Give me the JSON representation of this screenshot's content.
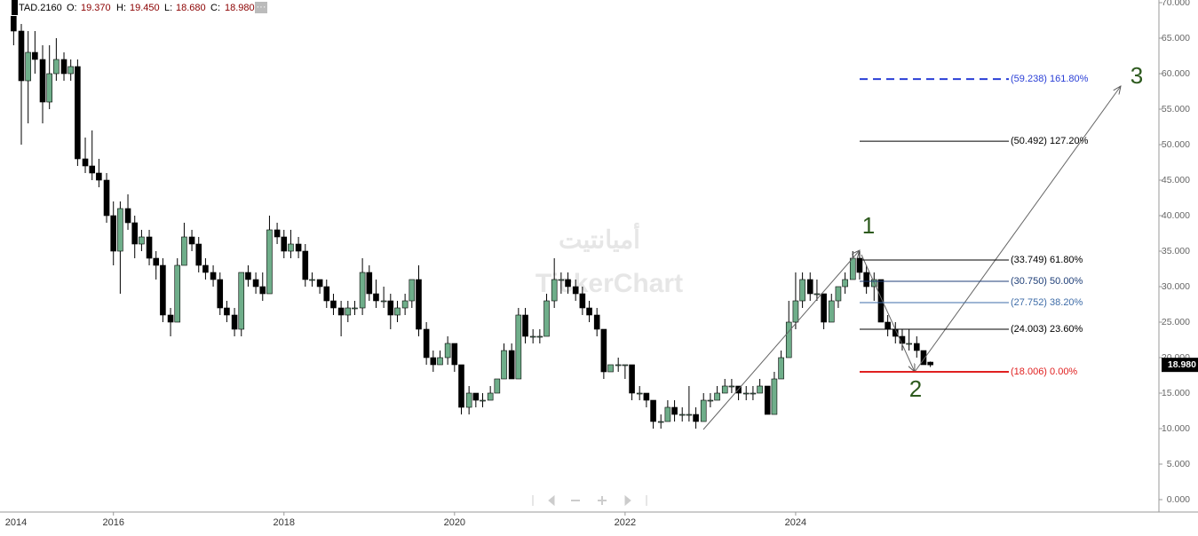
{
  "chart_data": {
    "type": "candlestick",
    "symbol": "TAD.2160",
    "ohlc_names": [
      "O:",
      "H:",
      "L:",
      "C:"
    ],
    "ohlc_labels": [
      "19.370",
      "19.450",
      "18.680",
      "18.980"
    ],
    "up_color": "#6fae8a",
    "down_color": "#000000",
    "x": [
      2014.83,
      2014.92,
      2015.0,
      2015.08,
      2015.17,
      2015.25,
      2015.33,
      2015.42,
      2015.5,
      2015.58,
      2015.67,
      2015.75,
      2015.83,
      2015.92,
      2016.0,
      2016.08,
      2016.17,
      2016.25,
      2016.33,
      2016.42,
      2016.5,
      2016.58,
      2016.67,
      2016.75,
      2016.83,
      2016.92,
      2017.0,
      2017.08,
      2017.17,
      2017.25,
      2017.33,
      2017.42,
      2017.5,
      2017.58,
      2017.67,
      2017.75,
      2017.83,
      2017.92,
      2018.0,
      2018.08,
      2018.17,
      2018.25,
      2018.33,
      2018.42,
      2018.5,
      2018.58,
      2018.67,
      2018.75,
      2018.83,
      2018.92,
      2019.0,
      2019.08,
      2019.17,
      2019.25,
      2019.33,
      2019.42,
      2019.5,
      2019.58,
      2019.67,
      2019.75,
      2019.83,
      2019.92,
      2020.0,
      2020.08,
      2020.17,
      2020.25,
      2020.33,
      2020.42,
      2020.5,
      2020.58,
      2020.67,
      2020.75,
      2020.83,
      2020.92,
      2021.0,
      2021.08,
      2021.17,
      2021.25,
      2021.33,
      2021.42,
      2021.5,
      2021.58,
      2021.67,
      2021.75,
      2021.83,
      2021.92,
      2022.0,
      2022.08,
      2022.17,
      2022.25,
      2022.33,
      2022.42,
      2022.5,
      2022.58,
      2022.67,
      2022.75,
      2022.83,
      2022.92,
      2023.0,
      2023.08,
      2023.17,
      2023.25,
      2023.33,
      2023.42,
      2023.5,
      2023.58,
      2023.67,
      2023.75,
      2023.83,
      2023.92,
      2024.0,
      2024.08,
      2024.17,
      2024.25,
      2024.33,
      2024.42,
      2024.5,
      2024.58,
      2024.67,
      2024.75,
      2024.83,
      2024.92,
      2025.0,
      2025.08,
      2025.17,
      2025.25,
      2025.33,
      2025.42,
      2025.5,
      2025.58
    ],
    "ohlc": [
      [
        70,
        71,
        64,
        66
      ],
      [
        66,
        67,
        50,
        59
      ],
      [
        59,
        66,
        53,
        63
      ],
      [
        63,
        66,
        60,
        62
      ],
      [
        62,
        64,
        53,
        56
      ],
      [
        56,
        64,
        55,
        60
      ],
      [
        60,
        65,
        59,
        62
      ],
      [
        62,
        63,
        59,
        60
      ],
      [
        60,
        62,
        59,
        61
      ],
      [
        61,
        62,
        47,
        48
      ],
      [
        48,
        51,
        46,
        47
      ],
      [
        47,
        52,
        45,
        46
      ],
      [
        46,
        48,
        44,
        45
      ],
      [
        45,
        46,
        39,
        40
      ],
      [
        40,
        42,
        33,
        35
      ],
      [
        35,
        42,
        29,
        41
      ],
      [
        41,
        43,
        38,
        39
      ],
      [
        39,
        40,
        34,
        36
      ],
      [
        36,
        38,
        35,
        37
      ],
      [
        37,
        38,
        33,
        34
      ],
      [
        34,
        35,
        31,
        33
      ],
      [
        33,
        34,
        25,
        26
      ],
      [
        26,
        27,
        23,
        25
      ],
      [
        25,
        34,
        25,
        33
      ],
      [
        33,
        39,
        33,
        37
      ],
      [
        37,
        38,
        35,
        36
      ],
      [
        36,
        37,
        32,
        33
      ],
      [
        33,
        34,
        31,
        32
      ],
      [
        32,
        33,
        30,
        31
      ],
      [
        31,
        32,
        26,
        27
      ],
      [
        27,
        28,
        25,
        26
      ],
      [
        26,
        27,
        23,
        24
      ],
      [
        24,
        32,
        23,
        32
      ],
      [
        32,
        33,
        30,
        31
      ],
      [
        31,
        32,
        29,
        30
      ],
      [
        30,
        32,
        28,
        29
      ],
      [
        29,
        40,
        29,
        38
      ],
      [
        38,
        39,
        36,
        37
      ],
      [
        37,
        38,
        34,
        35
      ],
      [
        35,
        38,
        34,
        36
      ],
      [
        36,
        37,
        34,
        35
      ],
      [
        35,
        36,
        30,
        31
      ],
      [
        31,
        32,
        30,
        31
      ],
      [
        31,
        31,
        29,
        30
      ],
      [
        30,
        31,
        27,
        28
      ],
      [
        28,
        29,
        26,
        27
      ],
      [
        27,
        28,
        23,
        26
      ],
      [
        26,
        28,
        25,
        27
      ],
      [
        27,
        28,
        26,
        27
      ],
      [
        27,
        34,
        26,
        32
      ],
      [
        32,
        33,
        28,
        29
      ],
      [
        29,
        31,
        27,
        28
      ],
      [
        28,
        30,
        27,
        28
      ],
      [
        28,
        29,
        24,
        26
      ],
      [
        26,
        28,
        25,
        27
      ],
      [
        27,
        29,
        26,
        28
      ],
      [
        28,
        31,
        27,
        31
      ],
      [
        31,
        33,
        23,
        24
      ],
      [
        24,
        25,
        19,
        20
      ],
      [
        20,
        21,
        18,
        19
      ],
      [
        19,
        21,
        19,
        20
      ],
      [
        20,
        23,
        19,
        22
      ],
      [
        22,
        22,
        18,
        19
      ],
      [
        19,
        19,
        12,
        13
      ],
      [
        13,
        16,
        12,
        15
      ],
      [
        15,
        15,
        13,
        14
      ],
      [
        14,
        15,
        13,
        14
      ],
      [
        14,
        16,
        14,
        15
      ],
      [
        15,
        17,
        15,
        17
      ],
      [
        17,
        22,
        17,
        21
      ],
      [
        21,
        22,
        17,
        17
      ],
      [
        17,
        27,
        17,
        26
      ],
      [
        26,
        27,
        22,
        23
      ],
      [
        23,
        24,
        22,
        23
      ],
      [
        23,
        24,
        22,
        23
      ],
      [
        23,
        29,
        23,
        28
      ],
      [
        28,
        34,
        27,
        31
      ],
      [
        31,
        32,
        29,
        31
      ],
      [
        31,
        32,
        29,
        30
      ],
      [
        30,
        31,
        28,
        29
      ],
      [
        29,
        30,
        26,
        27
      ],
      [
        27,
        28,
        25,
        26
      ],
      [
        26,
        27,
        23,
        24
      ],
      [
        24,
        24,
        17,
        18
      ],
      [
        18,
        19,
        18,
        19
      ],
      [
        19,
        20,
        18,
        19
      ],
      [
        19,
        19,
        17,
        19
      ],
      [
        19,
        19,
        14,
        15
      ],
      [
        15,
        16,
        14,
        15
      ],
      [
        15,
        15,
        13,
        14
      ],
      [
        14,
        14,
        10,
        11
      ],
      [
        11,
        12,
        10,
        11
      ],
      [
        11,
        14,
        11,
        13
      ],
      [
        13,
        14,
        11,
        12
      ],
      [
        12,
        13,
        11,
        12
      ],
      [
        12,
        16,
        11,
        12
      ],
      [
        12,
        13,
        10,
        11
      ],
      [
        11,
        15,
        11,
        14
      ],
      [
        14,
        15,
        13,
        14
      ],
      [
        14,
        16,
        14,
        15
      ],
      [
        15,
        17,
        15,
        16
      ],
      [
        16,
        17,
        15,
        16
      ],
      [
        16,
        16,
        14,
        15
      ],
      [
        15,
        16,
        14,
        15
      ],
      [
        15,
        16,
        14,
        15
      ],
      [
        15,
        17,
        15,
        16
      ],
      [
        16,
        16,
        12,
        12
      ],
      [
        12,
        18,
        12,
        17
      ],
      [
        17,
        21,
        17,
        20
      ],
      [
        20,
        28,
        20,
        25
      ],
      [
        25,
        32,
        24,
        28
      ],
      [
        28,
        32,
        27,
        31
      ],
      [
        31,
        32,
        28,
        29
      ],
      [
        29,
        31,
        28,
        29
      ],
      [
        29,
        29,
        24,
        25
      ],
      [
        25,
        29,
        25,
        28
      ],
      [
        28,
        30,
        27,
        30
      ],
      [
        30,
        32,
        29,
        31
      ],
      [
        31,
        35,
        31,
        34
      ],
      [
        34,
        35,
        31,
        32
      ],
      [
        32,
        33,
        29,
        30
      ],
      [
        30,
        32,
        28,
        31
      ],
      [
        31,
        31,
        25,
        25
      ],
      [
        25,
        26,
        23,
        24
      ],
      [
        24,
        25,
        22,
        23
      ],
      [
        23,
        24,
        21,
        22
      ],
      [
        22,
        24,
        21,
        22
      ],
      [
        22,
        23,
        20,
        21
      ],
      [
        21,
        21,
        19,
        19
      ],
      [
        19.37,
        19.45,
        18.68,
        18.98
      ]
    ],
    "fib_levels": [
      {
        "value": 59.238,
        "label": "(59.238) 161.80%",
        "color": "#2a3fd6",
        "dashed": true
      },
      {
        "value": 50.492,
        "label": "(50.492) 127.20%",
        "color": "#000000",
        "dashed": false
      },
      {
        "value": 33.749,
        "label": "(33.749) 61.80%",
        "color": "#000000",
        "dashed": false
      },
      {
        "value": 30.75,
        "label": "(30.750) 50.00%",
        "color": "#1f3f78",
        "dashed": false
      },
      {
        "value": 27.752,
        "label": "(27.752) 38.20%",
        "color": "#3f6da8",
        "dashed": false
      },
      {
        "value": 24.003,
        "label": "(24.003) 23.60%",
        "color": "#000000",
        "dashed": false
      },
      {
        "value": 18.006,
        "label": "(18.006) 0.00%",
        "color": "#e02020",
        "dashed": false
      }
    ],
    "wave_labels": [
      "1",
      "2",
      "3"
    ],
    "watermark": [
      "أميانتيت",
      "TickerChart"
    ],
    "xlim": [
      2014.67,
      2028.26
    ],
    "xticks": [
      2014,
      2016,
      2018,
      2020,
      2022,
      2024
    ],
    "ylim": [
      -1.75,
      70.375
    ],
    "yticks": [
      {
        "value": 0,
        "label": "0.000"
      },
      {
        "value": 5,
        "label": "5.000"
      },
      {
        "value": 10,
        "label": "10.000"
      },
      {
        "value": 15,
        "label": "15.000"
      },
      {
        "value": 20,
        "label": "20.000"
      },
      {
        "value": 25,
        "label": "25.000"
      },
      {
        "value": 30,
        "label": "30.000"
      },
      {
        "value": 35,
        "label": "35.000"
      },
      {
        "value": 40,
        "label": "40.000"
      },
      {
        "value": 45,
        "label": "45.000"
      },
      {
        "value": 50,
        "label": "50.000"
      },
      {
        "value": 55,
        "label": "55.000"
      },
      {
        "value": 60,
        "label": "60.000"
      },
      {
        "value": 65,
        "label": "65.000"
      },
      {
        "value": 70,
        "label": "70.000"
      }
    ]
  }
}
